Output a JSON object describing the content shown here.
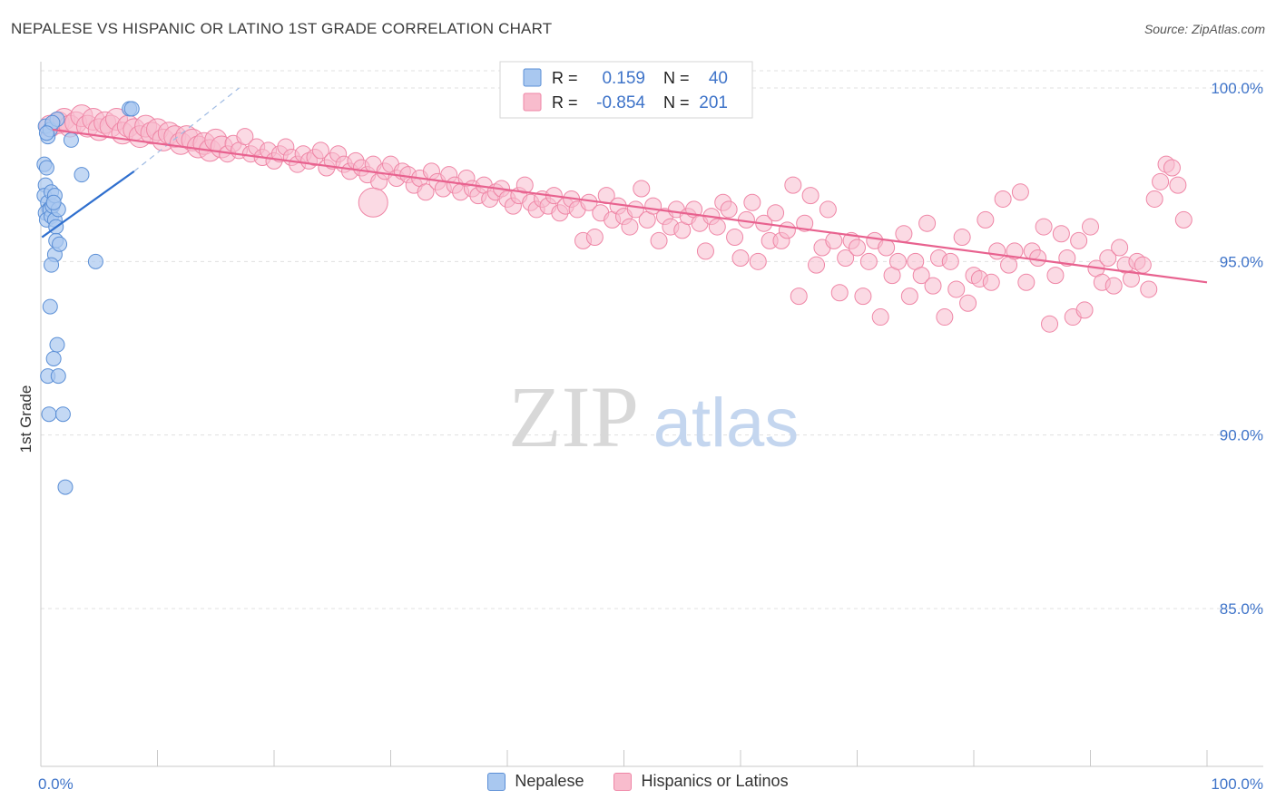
{
  "title": "NEPALESE VS HISPANIC OR LATINO 1ST GRADE CORRELATION CHART",
  "source": "Source: ZipAtlas.com",
  "watermark": {
    "zip": "ZIP",
    "atlas": "atlas"
  },
  "colors": {
    "blue_fill": "#a9c8f0",
    "blue_stroke": "#5b8fd6",
    "blue_line": "#2f6fce",
    "pink_fill": "#f8bccd",
    "pink_stroke": "#ef86a6",
    "pink_line": "#e8628f",
    "axis_label": "#3f74c9",
    "grid": "#e0e0e0"
  },
  "stats_legend": [
    {
      "r_label": "R =",
      "r_value": "0.159",
      "n_label": "N =",
      "n_value": "40",
      "color": "blue"
    },
    {
      "r_label": "R =",
      "r_value": "-0.854",
      "n_label": "N =",
      "n_value": "201",
      "color": "pink"
    }
  ],
  "chart_data": {
    "type": "scatter",
    "title": "NEPALESE VS HISPANIC OR LATINO 1ST GRADE CORRELATION CHART",
    "xlabel": "",
    "ylabel": "1st Grade",
    "xlim": [
      0,
      100
    ],
    "ylim": [
      80.5,
      100.8
    ],
    "x_tick_labels": [
      "0.0%",
      "100.0%"
    ],
    "y_ticks": [
      {
        "value": 85,
        "label": "85.0%"
      },
      {
        "value": 90,
        "label": "90.0%"
      },
      {
        "value": 95,
        "label": "95.0%"
      },
      {
        "value": 100,
        "label": "100.0%"
      }
    ],
    "grid": true,
    "legend_position": "bottom",
    "series": [
      {
        "name": "Nepalese",
        "color": "blue",
        "trend": {
          "x": [
            0.1,
            8.0
          ],
          "y": [
            95.7,
            97.6
          ]
        },
        "trend_extension": {
          "x": [
            8.0,
            17.0
          ],
          "y": [
            97.6,
            100.0
          ]
        },
        "points": [
          [
            0.3,
            97.8
          ],
          [
            0.5,
            97.7
          ],
          [
            0.4,
            97.2
          ],
          [
            0.3,
            96.9
          ],
          [
            0.6,
            96.7
          ],
          [
            0.7,
            96.5
          ],
          [
            0.4,
            96.4
          ],
          [
            0.5,
            96.2
          ],
          [
            0.8,
            96.5
          ],
          [
            0.9,
            96.3
          ],
          [
            1.0,
            96.6
          ],
          [
            1.2,
            96.2
          ],
          [
            1.3,
            96.0
          ],
          [
            1.5,
            96.5
          ],
          [
            0.9,
            97.0
          ],
          [
            1.2,
            96.9
          ],
          [
            0.6,
            98.6
          ],
          [
            0.4,
            98.9
          ],
          [
            0.8,
            98.8
          ],
          [
            1.4,
            99.1
          ],
          [
            1.0,
            99.0
          ],
          [
            2.6,
            98.5
          ],
          [
            3.5,
            97.5
          ],
          [
            7.6,
            99.4
          ],
          [
            7.8,
            99.4
          ],
          [
            1.3,
            95.6
          ],
          [
            1.2,
            95.2
          ],
          [
            1.6,
            95.5
          ],
          [
            0.9,
            94.9
          ],
          [
            4.7,
            95.0
          ],
          [
            0.8,
            93.7
          ],
          [
            1.4,
            92.6
          ],
          [
            1.1,
            92.2
          ],
          [
            0.6,
            91.7
          ],
          [
            1.5,
            91.7
          ],
          [
            0.7,
            90.6
          ],
          [
            1.9,
            90.6
          ],
          [
            2.1,
            88.5
          ],
          [
            0.5,
            98.7
          ],
          [
            1.1,
            96.7
          ]
        ]
      },
      {
        "name": "Hispanics or Latinos",
        "color": "pink",
        "trend": {
          "x": [
            1.0,
            100.0
          ],
          "y": [
            98.8,
            94.4
          ]
        },
        "points": [
          [
            0.8,
            98.9
          ],
          [
            1.5,
            99.0
          ],
          [
            2.0,
            99.1
          ],
          [
            2.5,
            98.9
          ],
          [
            3.0,
            99.0
          ],
          [
            3.5,
            99.2
          ],
          [
            4.0,
            98.9
          ],
          [
            4.5,
            99.1
          ],
          [
            5.0,
            98.8
          ],
          [
            5.5,
            99.0
          ],
          [
            6.0,
            98.9
          ],
          [
            6.5,
            99.1
          ],
          [
            7.0,
            98.7
          ],
          [
            7.5,
            98.9
          ],
          [
            8.0,
            98.8
          ],
          [
            8.5,
            98.6
          ],
          [
            9.0,
            98.9
          ],
          [
            9.5,
            98.7
          ],
          [
            10.0,
            98.8
          ],
          [
            10.5,
            98.5
          ],
          [
            11.0,
            98.7
          ],
          [
            11.5,
            98.6
          ],
          [
            12.0,
            98.4
          ],
          [
            12.5,
            98.6
          ],
          [
            13.0,
            98.5
          ],
          [
            13.5,
            98.3
          ],
          [
            14.0,
            98.4
          ],
          [
            14.5,
            98.2
          ],
          [
            15.0,
            98.5
          ],
          [
            15.5,
            98.3
          ],
          [
            16.0,
            98.1
          ],
          [
            16.5,
            98.4
          ],
          [
            17.0,
            98.2
          ],
          [
            17.5,
            98.6
          ],
          [
            18.0,
            98.1
          ],
          [
            18.5,
            98.3
          ],
          [
            19.0,
            98.0
          ],
          [
            19.5,
            98.2
          ],
          [
            20.0,
            97.9
          ],
          [
            20.5,
            98.1
          ],
          [
            21.0,
            98.3
          ],
          [
            21.5,
            98.0
          ],
          [
            22.0,
            97.8
          ],
          [
            22.5,
            98.1
          ],
          [
            23.0,
            97.9
          ],
          [
            23.5,
            98.0
          ],
          [
            24.0,
            98.2
          ],
          [
            24.5,
            97.7
          ],
          [
            25.0,
            97.9
          ],
          [
            25.5,
            98.1
          ],
          [
            26.0,
            97.8
          ],
          [
            26.5,
            97.6
          ],
          [
            27.0,
            97.9
          ],
          [
            27.5,
            97.7
          ],
          [
            28.0,
            97.5
          ],
          [
            28.5,
            97.8
          ],
          [
            29.0,
            97.3
          ],
          [
            29.5,
            97.6
          ],
          [
            30.0,
            97.8
          ],
          [
            30.5,
            97.4
          ],
          [
            31.0,
            97.6
          ],
          [
            31.5,
            97.5
          ],
          [
            32.0,
            97.2
          ],
          [
            32.5,
            97.4
          ],
          [
            33.0,
            97.0
          ],
          [
            33.5,
            97.6
          ],
          [
            34.0,
            97.3
          ],
          [
            34.5,
            97.1
          ],
          [
            35.0,
            97.5
          ],
          [
            35.5,
            97.2
          ],
          [
            36.0,
            97.0
          ],
          [
            36.5,
            97.4
          ],
          [
            37.0,
            97.1
          ],
          [
            37.5,
            96.9
          ],
          [
            38.0,
            97.2
          ],
          [
            38.5,
            96.8
          ],
          [
            39.0,
            97.0
          ],
          [
            39.5,
            97.1
          ],
          [
            40.0,
            96.8
          ],
          [
            40.5,
            96.6
          ],
          [
            41.0,
            96.9
          ],
          [
            41.5,
            97.2
          ],
          [
            42.0,
            96.7
          ],
          [
            42.5,
            96.5
          ],
          [
            43.0,
            96.8
          ],
          [
            43.5,
            96.6
          ],
          [
            44.0,
            96.9
          ],
          [
            44.5,
            96.4
          ],
          [
            45.0,
            96.6
          ],
          [
            45.5,
            96.8
          ],
          [
            46.0,
            96.5
          ],
          [
            46.5,
            95.6
          ],
          [
            47.0,
            96.7
          ],
          [
            47.5,
            95.7
          ],
          [
            48.0,
            96.4
          ],
          [
            48.5,
            96.9
          ],
          [
            49.0,
            96.2
          ],
          [
            49.5,
            96.6
          ],
          [
            50.0,
            96.3
          ],
          [
            50.5,
            96.0
          ],
          [
            51.0,
            96.5
          ],
          [
            51.5,
            97.1
          ],
          [
            52.0,
            96.2
          ],
          [
            52.5,
            96.6
          ],
          [
            53.0,
            95.6
          ],
          [
            53.5,
            96.3
          ],
          [
            54.0,
            96.0
          ],
          [
            54.5,
            96.5
          ],
          [
            55.0,
            95.9
          ],
          [
            55.5,
            96.3
          ],
          [
            56.0,
            96.5
          ],
          [
            56.5,
            96.1
          ],
          [
            57.0,
            95.3
          ],
          [
            57.5,
            96.3
          ],
          [
            58.0,
            96.0
          ],
          [
            58.5,
            96.7
          ],
          [
            59.0,
            96.5
          ],
          [
            59.5,
            95.7
          ],
          [
            60.0,
            95.1
          ],
          [
            60.5,
            96.2
          ],
          [
            61.0,
            96.7
          ],
          [
            61.5,
            95.0
          ],
          [
            62.0,
            96.1
          ],
          [
            62.5,
            95.6
          ],
          [
            63.0,
            96.4
          ],
          [
            63.5,
            95.6
          ],
          [
            64.0,
            95.9
          ],
          [
            64.5,
            97.2
          ],
          [
            65.0,
            94.0
          ],
          [
            65.5,
            96.1
          ],
          [
            66.0,
            96.9
          ],
          [
            66.5,
            94.9
          ],
          [
            67.0,
            95.4
          ],
          [
            67.5,
            96.5
          ],
          [
            68.0,
            95.6
          ],
          [
            68.5,
            94.1
          ],
          [
            69.0,
            95.1
          ],
          [
            69.5,
            95.6
          ],
          [
            70.0,
            95.4
          ],
          [
            70.5,
            94.0
          ],
          [
            71.0,
            95.0
          ],
          [
            71.5,
            95.6
          ],
          [
            72.0,
            93.4
          ],
          [
            72.5,
            95.4
          ],
          [
            73.0,
            94.6
          ],
          [
            73.5,
            95.0
          ],
          [
            74.0,
            95.8
          ],
          [
            74.5,
            94.0
          ],
          [
            75.0,
            95.0
          ],
          [
            75.5,
            94.6
          ],
          [
            76.0,
            96.1
          ],
          [
            76.5,
            94.3
          ],
          [
            77.0,
            95.1
          ],
          [
            77.5,
            93.4
          ],
          [
            78.0,
            95.0
          ],
          [
            78.5,
            94.2
          ],
          [
            79.0,
            95.7
          ],
          [
            79.5,
            93.8
          ],
          [
            80.0,
            94.6
          ],
          [
            80.5,
            94.5
          ],
          [
            81.0,
            96.2
          ],
          [
            81.5,
            94.4
          ],
          [
            82.0,
            95.3
          ],
          [
            82.5,
            96.8
          ],
          [
            83.0,
            94.9
          ],
          [
            83.5,
            95.3
          ],
          [
            84.0,
            97.0
          ],
          [
            84.5,
            94.4
          ],
          [
            85.0,
            95.3
          ],
          [
            85.5,
            95.1
          ],
          [
            86.0,
            96.0
          ],
          [
            86.5,
            93.2
          ],
          [
            87.0,
            94.6
          ],
          [
            87.5,
            95.8
          ],
          [
            88.0,
            95.1
          ],
          [
            88.5,
            93.4
          ],
          [
            89.0,
            95.6
          ],
          [
            89.5,
            93.6
          ],
          [
            90.0,
            96.0
          ],
          [
            90.5,
            94.8
          ],
          [
            91.0,
            94.4
          ],
          [
            91.5,
            95.1
          ],
          [
            92.0,
            94.3
          ],
          [
            92.5,
            95.4
          ],
          [
            93.0,
            94.9
          ],
          [
            93.5,
            94.5
          ],
          [
            94.0,
            95.0
          ],
          [
            94.5,
            94.9
          ],
          [
            95.0,
            94.2
          ],
          [
            95.5,
            96.8
          ],
          [
            96.0,
            97.3
          ],
          [
            96.5,
            97.8
          ],
          [
            97.0,
            97.7
          ],
          [
            97.5,
            97.2
          ],
          [
            98.0,
            96.2
          ],
          [
            28.5,
            96.7
          ]
        ]
      }
    ]
  }
}
